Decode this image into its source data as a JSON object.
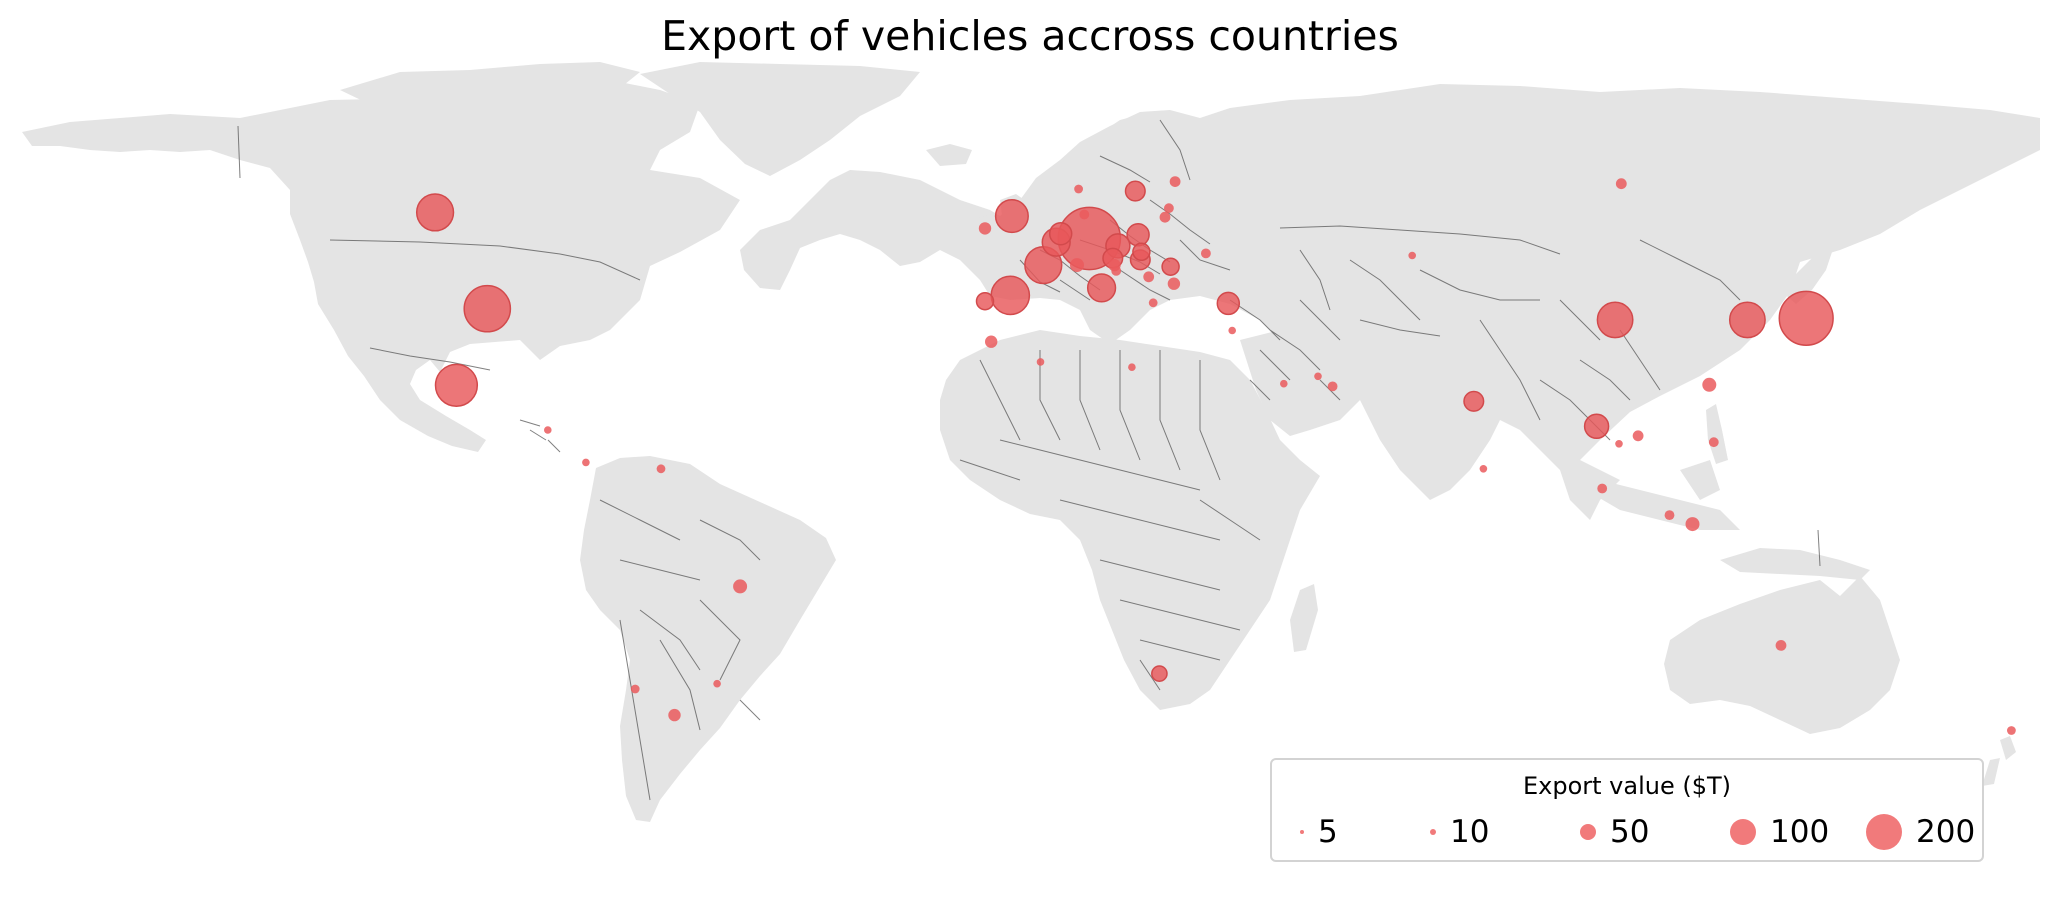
{
  "title": "Export of vehicles accross countries",
  "legend": {
    "title": "Export value ($T)",
    "items": [
      {
        "label": "5",
        "value": 5
      },
      {
        "label": "10",
        "value": 10
      },
      {
        "label": "50",
        "value": 50
      },
      {
        "label": "100",
        "value": 100
      },
      {
        "label": "200",
        "value": 200
      }
    ]
  },
  "colors": {
    "land": "#e4e4e4",
    "border": "#555555",
    "bubble": "#e8585a",
    "legend_marker": "#f17a7b"
  },
  "chart_data": {
    "type": "bubble-map",
    "projection": "equirectangular",
    "lon_range": [
      -180,
      180
    ],
    "lat_range": [
      -60,
      84
    ],
    "points": [
      {
        "lat": 51.2,
        "lon": 10.4,
        "value": 200
      },
      {
        "lat": 36.2,
        "lon": 138.3,
        "value": 150
      },
      {
        "lat": 38.0,
        "lon": -97.0,
        "value": 110
      },
      {
        "lat": 23.6,
        "lon": -102.5,
        "value": 90
      },
      {
        "lat": 56.1,
        "lon": -106.3,
        "value": 70
      },
      {
        "lat": 35.9,
        "lon": 104.2,
        "value": 65
      },
      {
        "lat": 35.9,
        "lon": 127.8,
        "value": 65
      },
      {
        "lat": 46.2,
        "lon": 2.2,
        "value": 70
      },
      {
        "lat": 40.5,
        "lon": -3.7,
        "value": 75
      },
      {
        "lat": 55.4,
        "lon": -3.4,
        "value": 55
      },
      {
        "lat": 50.5,
        "lon": 4.5,
        "value": 40
      },
      {
        "lat": 41.9,
        "lon": 12.6,
        "value": 40
      },
      {
        "lat": 49.8,
        "lon": 15.5,
        "value": 30
      },
      {
        "lat": 52.1,
        "lon": 5.3,
        "value": 25
      },
      {
        "lat": 51.9,
        "lon": 19.1,
        "value": 25
      },
      {
        "lat": 47.5,
        "lon": 14.6,
        "value": 20
      },
      {
        "lat": 47.2,
        "lon": 19.5,
        "value": 20
      },
      {
        "lat": 48.7,
        "lon": 19.7,
        "value": 15
      },
      {
        "lat": 45.9,
        "lon": 24.9,
        "value": 15
      },
      {
        "lat": 60.1,
        "lon": 18.6,
        "value": 20
      },
      {
        "lat": 39.0,
        "lon": 35.2,
        "value": 25
      },
      {
        "lat": 15.9,
        "lon": 100.9,
        "value": 30
      },
      {
        "lat": -14.2,
        "lon": -51.9,
        "value": 10
      },
      {
        "lat": -38.4,
        "lon": -63.6,
        "value": 8
      },
      {
        "lat": -30.6,
        "lon": 22.9,
        "value": 12
      },
      {
        "lat": 20.6,
        "lon": 79.0,
        "value": 20
      },
      {
        "lat": 31.8,
        "lon": -7.1,
        "value": 8
      },
      {
        "lat": 23.7,
        "lon": 121.0,
        "value": 10
      },
      {
        "lat": 4.2,
        "lon": 101.9,
        "value": 5
      },
      {
        "lat": -2.5,
        "lon": 118.0,
        "value": 10
      },
      {
        "lat": 61.5,
        "lon": 105.3,
        "value": 6
      },
      {
        "lat": -25.3,
        "lon": 133.8,
        "value": 6
      },
      {
        "lat": 39.4,
        "lon": -8.2,
        "value": 15
      },
      {
        "lat": 53.1,
        "lon": -8.2,
        "value": 8
      },
      {
        "lat": 61.9,
        "lon": 25.7,
        "value": 6
      },
      {
        "lat": 55.2,
        "lon": 23.9,
        "value": 6
      },
      {
        "lat": 56.9,
        "lon": 24.6,
        "value": 5
      },
      {
        "lat": 48.4,
        "lon": 31.2,
        "value": 5
      },
      {
        "lat": 46.2,
        "lon": 8.2,
        "value": 10
      },
      {
        "lat": 42.7,
        "lon": 25.5,
        "value": 8
      },
      {
        "lat": 45.1,
        "lon": 15.2,
        "value": 5
      },
      {
        "lat": 46.2,
        "lon": 14.9,
        "value": 8
      },
      {
        "lat": 44.0,
        "lon": 21.0,
        "value": 6
      },
      {
        "lat": 39.1,
        "lon": 21.8,
        "value": 4
      },
      {
        "lat": 55.7,
        "lon": 9.5,
        "value": 5
      },
      {
        "lat": 60.5,
        "lon": 8.5,
        "value": 4
      },
      {
        "lat": 14.1,
        "lon": 108.3,
        "value": 6
      },
      {
        "lat": 12.9,
        "lon": 121.8,
        "value": 5
      },
      {
        "lat": 23.4,
        "lon": 53.8,
        "value": 5
      },
      {
        "lat": 25.3,
        "lon": 51.2,
        "value": 3
      },
      {
        "lat": 23.9,
        "lon": 45.1,
        "value": 3
      },
      {
        "lat": -0.8,
        "lon": 113.9,
        "value": 5
      },
      {
        "lat": 7.9,
        "lon": -66.0,
        "value": 4
      },
      {
        "lat": -33.5,
        "lon": -70.6,
        "value": 4
      },
      {
        "lat": 7.9,
        "lon": 80.7,
        "value": 3
      },
      {
        "lat": 27.0,
        "lon": 18.0,
        "value": 3
      },
      {
        "lat": 28.0,
        "lon": 1.7,
        "value": 3
      },
      {
        "lat": 48.0,
        "lon": 68.0,
        "value": 3
      },
      {
        "lat": -32.5,
        "lon": -56.0,
        "value": 3
      },
      {
        "lat": 9.1,
        "lon": -79.4,
        "value": 3
      },
      {
        "lat": 15.2,
        "lon": -86.2,
        "value": 3
      },
      {
        "lat": -41.3,
        "lon": 174.9,
        "value": 4
      },
      {
        "lat": 12.6,
        "lon": 104.9,
        "value": 3
      },
      {
        "lat": 33.9,
        "lon": 35.9,
        "value": 3
      }
    ]
  }
}
